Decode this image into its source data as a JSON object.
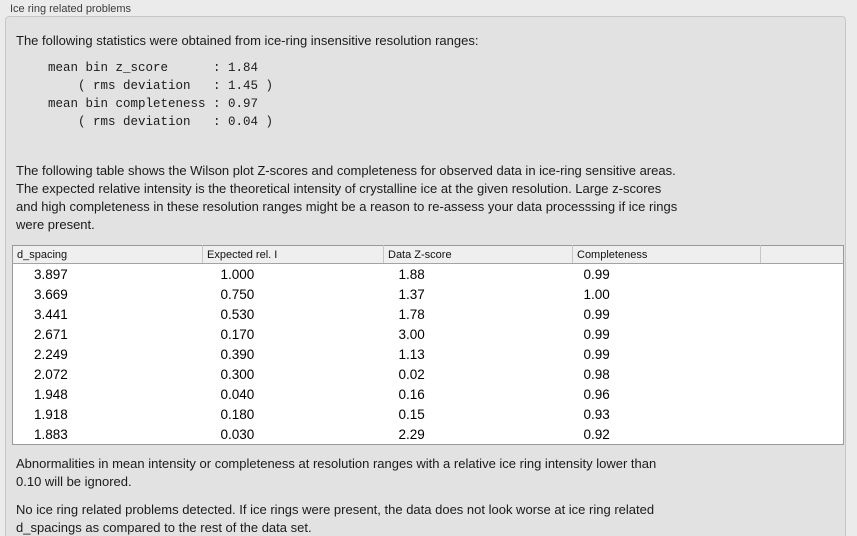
{
  "panel": {
    "title": "Ice ring related problems"
  },
  "sections": {
    "intro": "The following statistics were obtained from ice-ring insensitive resolution ranges:",
    "stats_block": "mean bin z_score      : 1.84\n    ( rms deviation   : 1.45 )\nmean bin completeness : 0.97\n    ( rms deviation   : 0.04 )",
    "table_description": "The following table shows the Wilson plot Z-scores and completeness for observed data in ice-ring sensitive areas.\nThe expected relative intensity is the theoretical intensity of crystalline ice at the given resolution. Large z-scores\nand high completeness in these resolution ranges might be a reason to re-assess your data processsing if ice rings\nwere present.",
    "footer_note": "Abnormalities in mean intensity or completeness at resolution ranges with a relative ice ring intensity lower than\n0.10 will be ignored.",
    "conclusion": "No ice ring related problems detected. If ice rings were present, the data does not look worse at ice ring related\nd_spacings as compared to the rest of the data set."
  },
  "stats": {
    "mean_bin_z_score": "1.84",
    "z_score_rms_deviation": "1.45",
    "mean_bin_completeness": "0.97",
    "completeness_rms_deviation": "0.04"
  },
  "table": {
    "columns": [
      "d_spacing",
      "Expected rel. I",
      "Data Z-score",
      "Completeness",
      ""
    ],
    "rows": [
      [
        "3.897",
        "1.000",
        "1.88",
        "0.99"
      ],
      [
        "3.669",
        "0.750",
        "1.37",
        "1.00"
      ],
      [
        "3.441",
        "0.530",
        "1.78",
        "0.99"
      ],
      [
        "2.671",
        "0.170",
        "3.00",
        "0.99"
      ],
      [
        "2.249",
        "0.390",
        "1.13",
        "0.99"
      ],
      [
        "2.072",
        "0.300",
        "0.02",
        "0.98"
      ],
      [
        "1.948",
        "0.040",
        "0.16",
        "0.96"
      ],
      [
        "1.918",
        "0.180",
        "0.15",
        "0.93"
      ],
      [
        "1.883",
        "0.030",
        "2.29",
        "0.92"
      ]
    ]
  },
  "colors": {
    "page_bg": "#ebebeb",
    "panel_bg": "#e2e2e2",
    "panel_border": "#c7c7c7",
    "table_bg": "#ffffff",
    "table_border": "#9a9a9a",
    "table_header_bg": "#efefef",
    "text": "#1b1b1b"
  }
}
